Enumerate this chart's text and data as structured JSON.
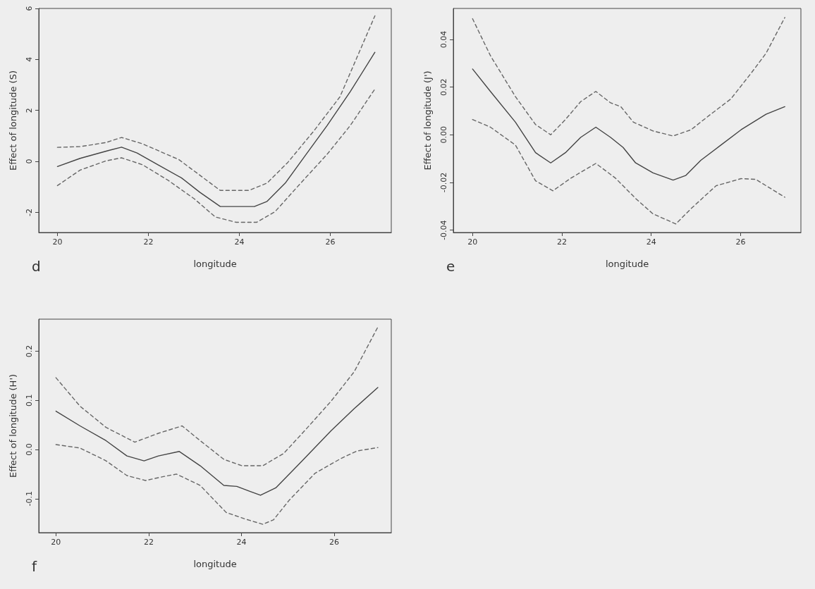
{
  "chart_data": [
    {
      "type": "line",
      "xlabel": "longitude",
      "ylabel": "Effect of longitude (S)",
      "annotations": [
        "d"
      ],
      "xlim": [
        19.59,
        27.34
      ],
      "ylim": [
        -2.79,
        6
      ],
      "xticks": [
        20,
        22,
        24,
        26
      ],
      "yticks": [
        -2,
        0,
        2,
        4,
        6
      ],
      "grid": false,
      "marker": "none",
      "series": [
        {
          "color": "#444444",
          "line_style": "solid",
          "x": [
            20,
            20.5,
            21.13,
            21.41,
            21.75,
            22.21,
            22.73,
            23.13,
            23.58,
            23.93,
            24.33,
            24.61,
            25.01,
            25.47,
            25.93,
            26.44,
            26.98
          ],
          "values": [
            -0.2,
            0.12,
            0.43,
            0.56,
            0.33,
            -0.13,
            -0.65,
            -1.21,
            -1.77,
            -1.77,
            -1.77,
            -1.57,
            -0.85,
            0.28,
            1.41,
            2.74,
            4.28
          ]
        },
        {
          "color": "#666666",
          "line_style": "dashed",
          "x": [
            20,
            20.5,
            21.07,
            21.41,
            21.87,
            22.67,
            23.13,
            23.58,
            24.21,
            24.61,
            25.07,
            25.64,
            26.21,
            26.98
          ],
          "values": [
            0.55,
            0.58,
            0.74,
            0.94,
            0.69,
            0.07,
            -0.54,
            -1.14,
            -1.14,
            -0.85,
            -0.03,
            1.2,
            2.53,
            5.71
          ]
        },
        {
          "color": "#666666",
          "line_style": "dashed",
          "x": [
            20,
            20.5,
            21.07,
            21.41,
            21.87,
            22.44,
            23.01,
            23.47,
            23.93,
            24.38,
            24.78,
            25.35,
            25.93,
            26.44,
            26.98
          ],
          "values": [
            -0.95,
            -0.34,
            0.02,
            0.14,
            -0.13,
            -0.75,
            -1.47,
            -2.18,
            -2.39,
            -2.39,
            -1.98,
            -0.85,
            0.28,
            1.41,
            2.84
          ]
        }
      ]
    },
    {
      "type": "line",
      "xlabel": "longitude",
      "ylabel": "Effect of longitude (J')",
      "annotations": [
        "e"
      ],
      "xlim": [
        19.57,
        27.35
      ],
      "ylim": [
        -0.041,
        0.053
      ],
      "xticks": [
        20,
        22,
        24,
        26
      ],
      "yticks": [
        -0.04,
        -0.02,
        {
          "value": 0,
          "label": "0.00"
        },
        0.02,
        0.04
      ],
      "grid": false,
      "marker": "none",
      "series": [
        {
          "color": "#444444",
          "line_style": "solid",
          "x": [
            20,
            20.4,
            20.96,
            21.41,
            21.75,
            22.08,
            22.42,
            22.76,
            23.09,
            23.37,
            23.65,
            24.04,
            24.49,
            24.77,
            25.11,
            25.56,
            26.01,
            26.57,
            26.99
          ],
          "values": [
            0.0276,
            0.0182,
            0.0053,
            -0.0075,
            -0.0118,
            -0.0075,
            -0.0011,
            0.0032,
            -0.0011,
            -0.0053,
            -0.0118,
            -0.016,
            -0.019,
            -0.0171,
            -0.0107,
            -0.0043,
            0.0021,
            0.0086,
            0.0118
          ]
        },
        {
          "color": "#666666",
          "line_style": "dashed",
          "x": [
            20,
            20.4,
            20.96,
            21.41,
            21.75,
            22.08,
            22.42,
            22.76,
            23.09,
            23.32,
            23.6,
            24.04,
            24.49,
            24.89,
            25.33,
            25.78,
            26.23,
            26.57,
            26.99
          ],
          "values": [
            0.0487,
            0.0332,
            0.016,
            0.0043,
            0,
            0.0064,
            0.0139,
            0.0182,
            0.0134,
            0.0118,
            0.0053,
            0.0016,
            -0.0005,
            0.0021,
            0.0086,
            0.015,
            0.0257,
            0.0342,
            0.0492
          ]
        },
        {
          "color": "#666666",
          "line_style": "dashed",
          "x": [
            20,
            20.4,
            20.96,
            21.41,
            21.8,
            22.2,
            22.76,
            23.2,
            23.65,
            24.04,
            24.55,
            24.89,
            25.45,
            26.01,
            26.34,
            26.99
          ],
          "values": [
            0.0064,
            0.0032,
            -0.0043,
            -0.0193,
            -0.0235,
            -0.0182,
            -0.012,
            -0.0182,
            -0.0267,
            -0.0332,
            -0.0374,
            -0.031,
            -0.0214,
            -0.0184,
            -0.0187,
            -0.0262
          ]
        }
      ]
    },
    {
      "type": "line",
      "xlabel": "longitude",
      "ylabel": "Effect of longitude (H')",
      "annotations": [
        "f"
      ],
      "xlim": [
        19.63,
        27.23
      ],
      "ylim": [
        -0.169,
        0.265
      ],
      "xticks": [
        20,
        22,
        24,
        26
      ],
      "yticks": [
        -0.1,
        {
          "value": 0,
          "label": "0.0"
        },
        0.1,
        0.2
      ],
      "grid": false,
      "marker": "none",
      "series": [
        {
          "color": "#444444",
          "line_style": "solid",
          "x": [
            20,
            20.52,
            21.08,
            21.53,
            21.9,
            22.21,
            22.66,
            23.11,
            23.62,
            23.9,
            24.18,
            24.41,
            24.74,
            25.31,
            25.93,
            26.43,
            26.94
          ],
          "values": [
            0.078,
            0.048,
            0.018,
            -0.013,
            -0.023,
            -0.013,
            -0.004,
            -0.033,
            -0.073,
            -0.075,
            -0.085,
            -0.093,
            -0.078,
            -0.023,
            0.038,
            0.083,
            0.126
          ]
        },
        {
          "color": "#666666",
          "line_style": "dashed",
          "x": [
            20,
            20.52,
            21.08,
            21.7,
            22.21,
            22.72,
            23.11,
            23.62,
            24.01,
            24.46,
            24.91,
            25.36,
            25.93,
            26.43,
            26.94
          ],
          "values": [
            0.146,
            0.088,
            0.045,
            0.015,
            0.033,
            0.048,
            0.018,
            -0.02,
            -0.033,
            -0.033,
            -0.008,
            0.038,
            0.098,
            0.158,
            0.249
          ]
        },
        {
          "color": "#666666",
          "line_style": "dashed",
          "x": [
            20,
            20.52,
            21.08,
            21.53,
            21.93,
            22.32,
            22.6,
            23.11,
            23.67,
            24.07,
            24.46,
            24.69,
            25.03,
            25.59,
            26.15,
            26.49,
            26.94
          ],
          "values": [
            0.01,
            0.003,
            -0.023,
            -0.053,
            -0.063,
            -0.055,
            -0.05,
            -0.073,
            -0.128,
            -0.141,
            -0.152,
            -0.143,
            -0.103,
            -0.048,
            -0.018,
            -0.003,
            0.004
          ]
        }
      ]
    }
  ]
}
